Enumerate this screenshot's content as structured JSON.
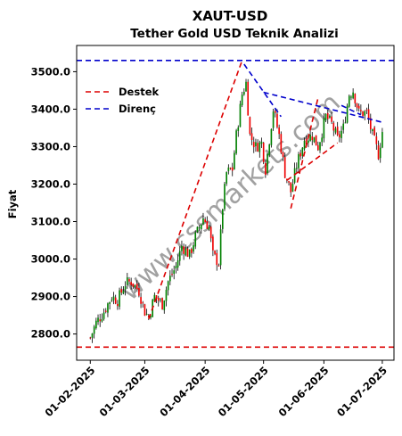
{
  "chart_data": {
    "type": "candlestick",
    "title": "XAUT-USD",
    "subtitle": "Tether Gold USD Teknik Analizi",
    "ylabel": "Fiyat",
    "xlabel": "",
    "watermark": "www.cssmarkets.com",
    "x_ticks": [
      "01-02-2025",
      "01-03-2025",
      "01-04-2025",
      "01-05-2025",
      "01-06-2025",
      "01-07-2025"
    ],
    "y_ticks": [
      "2800.0",
      "2900.0",
      "3000.0",
      "3100.0",
      "3200.0",
      "3300.0",
      "3400.0",
      "3500.0"
    ],
    "ylim": [
      2730,
      3570
    ],
    "xlim_days": [
      -7,
      156
    ],
    "grid": false,
    "legend": {
      "placement": "upper-left",
      "entries": [
        {
          "label": "Destek",
          "color": "#dd0000",
          "style": "dashed"
        },
        {
          "label": "Direnç",
          "color": "#0000cc",
          "style": "dashed"
        }
      ]
    },
    "colors": {
      "up": "#008000",
      "down": "#ee0000",
      "wick": "#000000",
      "support": "#dd0000",
      "resistance": "#0000cc"
    },
    "horizontal_lines": [
      {
        "kind": "resistance",
        "value": 3530
      },
      {
        "kind": "support",
        "value": 2765
      }
    ],
    "trend_lines": [
      {
        "kind": "support",
        "x1": "2025-03-03",
        "y1": 2840,
        "x2": "2025-04-20",
        "y2": 3530
      },
      {
        "kind": "support",
        "x1": "2025-05-15",
        "y1": 3135,
        "x2": "2025-05-29",
        "y2": 3430
      },
      {
        "kind": "support",
        "x1": "2025-05-13",
        "y1": 3210,
        "x2": "2025-06-08",
        "y2": 3310
      },
      {
        "kind": "resistance",
        "x1": "2025-04-21",
        "y1": 3520,
        "x2": "2025-05-10",
        "y2": 3380
      },
      {
        "kind": "resistance",
        "x1": "2025-05-01",
        "y1": 3445,
        "x2": "2025-07-01",
        "y2": 3365
      },
      {
        "kind": "resistance",
        "x1": "2025-06-10",
        "y1": 3410,
        "x2": "2025-06-20",
        "y2": 3385
      }
    ],
    "close_path": [
      [
        "2025-02-01",
        2790
      ],
      [
        "2025-02-04",
        2830
      ],
      [
        "2025-02-08",
        2860
      ],
      [
        "2025-02-12",
        2900
      ],
      [
        "2025-02-15",
        2890
      ],
      [
        "2025-02-19",
        2935
      ],
      [
        "2025-02-22",
        2940
      ],
      [
        "2025-02-26",
        2915
      ],
      [
        "2025-03-01",
        2860
      ],
      [
        "2025-03-03",
        2845
      ],
      [
        "2025-03-06",
        2900
      ],
      [
        "2025-03-10",
        2880
      ],
      [
        "2025-03-13",
        2940
      ],
      [
        "2025-03-17",
        2980
      ],
      [
        "2025-03-20",
        3035
      ],
      [
        "2025-03-24",
        3010
      ],
      [
        "2025-03-27",
        3060
      ],
      [
        "2025-03-31",
        3110
      ],
      [
        "2025-04-03",
        3085
      ],
      [
        "2025-04-05",
        3010
      ],
      [
        "2025-04-08",
        2990
      ],
      [
        "2025-04-10",
        3140
      ],
      [
        "2025-04-12",
        3230
      ],
      [
        "2025-04-15",
        3240
      ],
      [
        "2025-04-17",
        3330
      ],
      [
        "2025-04-20",
        3440
      ],
      [
        "2025-04-22",
        3470
      ],
      [
        "2025-04-24",
        3330
      ],
      [
        "2025-04-27",
        3300
      ],
      [
        "2025-04-30",
        3310
      ],
      [
        "2025-05-02",
        3240
      ],
      [
        "2025-05-06",
        3400
      ],
      [
        "2025-05-09",
        3330
      ],
      [
        "2025-05-12",
        3230
      ],
      [
        "2025-05-15",
        3180
      ],
      [
        "2025-05-18",
        3250
      ],
      [
        "2025-05-22",
        3320
      ],
      [
        "2025-05-26",
        3330
      ],
      [
        "2025-05-29",
        3300
      ],
      [
        "2025-06-02",
        3380
      ],
      [
        "2025-06-05",
        3360
      ],
      [
        "2025-06-08",
        3320
      ],
      [
        "2025-06-11",
        3350
      ],
      [
        "2025-06-14",
        3440
      ],
      [
        "2025-06-16",
        3450
      ],
      [
        "2025-06-19",
        3390
      ],
      [
        "2025-06-23",
        3390
      ],
      [
        "2025-06-26",
        3330
      ],
      [
        "2025-06-29",
        3280
      ],
      [
        "2025-07-01",
        3340
      ]
    ],
    "candle_seed": 7
  }
}
